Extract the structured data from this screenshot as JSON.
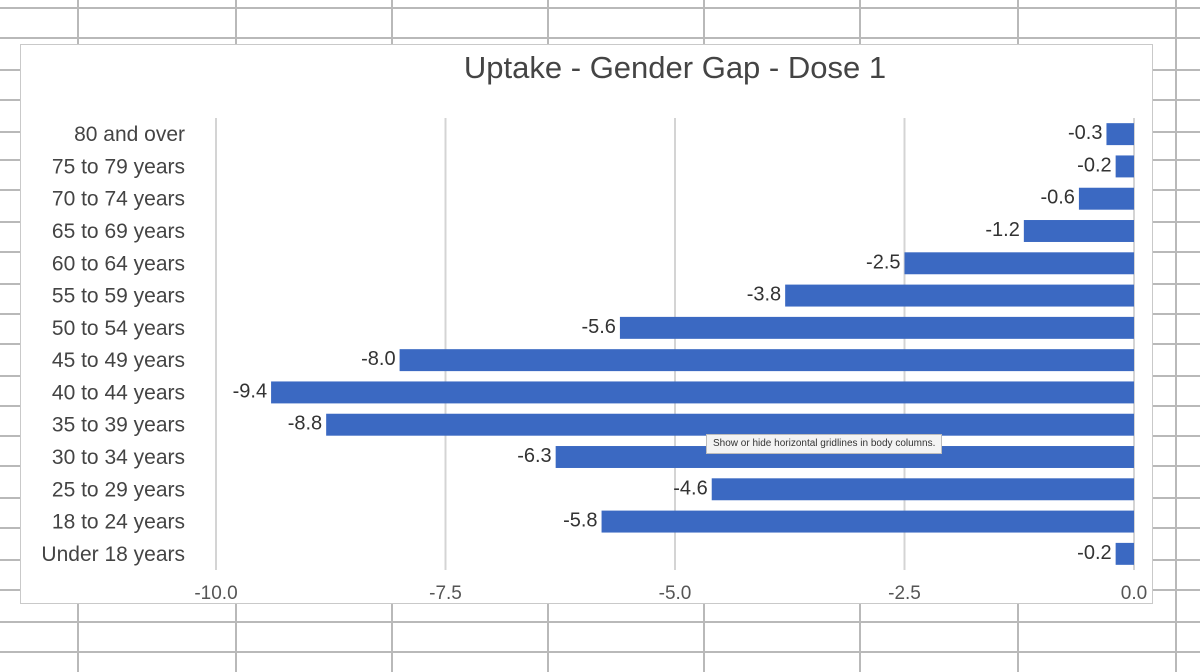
{
  "tooltip": {
    "text": "Show or hide horizontal gridlines in body columns."
  },
  "colors": {
    "bar": "#3b69c2",
    "gridline": "#d4d4d4",
    "sheet_grid": "#b9b9b9"
  },
  "chart_data": {
    "type": "bar",
    "orientation": "horizontal",
    "title": "Uptake - Gender Gap - Dose 1",
    "xlabel": "",
    "ylabel": "",
    "xlim": [
      -10.0,
      0.0
    ],
    "x_ticks": [
      "-10.0",
      "-7.5",
      "-5.0",
      "-2.5",
      "0.0"
    ],
    "grid": true,
    "categories": [
      "80 and over",
      "75 to 79 years",
      "70 to 74 years",
      "65 to 69 years",
      "60 to 64 years",
      "55 to 59 years",
      "50 to 54 years",
      "45 to 49 years",
      "40 to 44 years",
      "35 to 39 years",
      "30 to 34 years",
      "25 to 29 years",
      "18 to 24 years",
      "Under 18 years"
    ],
    "values": [
      -0.3,
      -0.2,
      -0.6,
      -1.2,
      -2.5,
      -3.8,
      -5.6,
      -8.0,
      -9.4,
      -8.8,
      -6.3,
      -4.6,
      -5.8,
      -0.2
    ],
    "data_labels": [
      "-0.3",
      "-0.2",
      "-0.6",
      "-1.2",
      "-2.5",
      "-3.8",
      "-5.6",
      "-8.0",
      "-9.4",
      "-8.8",
      "-6.3",
      "-4.6",
      "-5.8",
      "-0.2"
    ]
  }
}
